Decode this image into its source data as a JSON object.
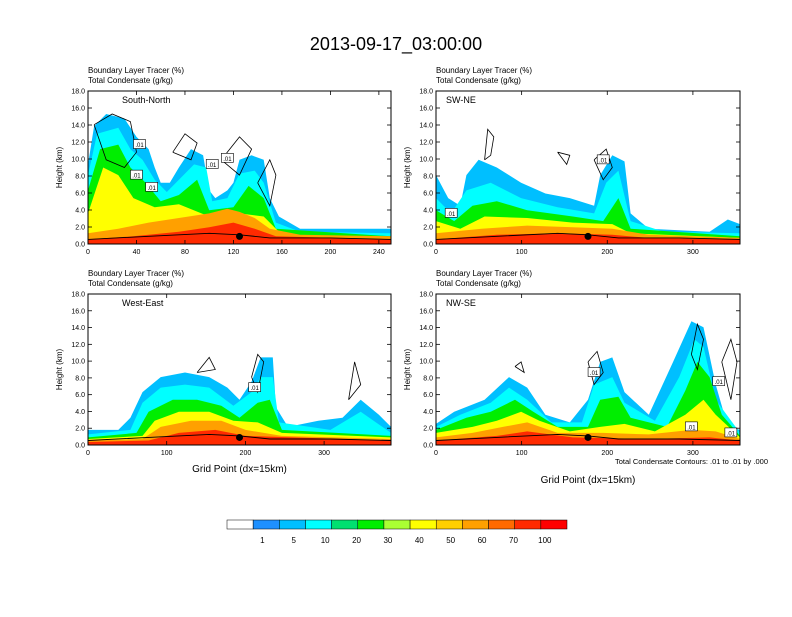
{
  "title": "2013-09-17_03:00:00",
  "colors": [
    "#ffffff",
    "#1e90ff",
    "#00bfff",
    "#00ffff",
    "#00e070",
    "#00ee00",
    "#aaff33",
    "#ffff00",
    "#ffd000",
    "#ffa000",
    "#ff6a00",
    "#ff2a00",
    "#ff0000"
  ],
  "colorbar": {
    "labels": [
      "1",
      "5",
      "10",
      "20",
      "30",
      "40",
      "50",
      "60",
      "70",
      "100"
    ]
  },
  "contour_note": "Total Condensate Contours: .01 to .01 by .000",
  "chart_data": [
    {
      "type": "heatmap",
      "title": "South-North",
      "subtitle_lines": [
        "Boundary Layer Tracer   (%)",
        "Total Condensate   (g/kg)"
      ],
      "ylabel": "Height (km)",
      "xlabel": "",
      "xlim": [
        0,
        250
      ],
      "xticks": [
        "0",
        "40",
        "80",
        "120",
        "160",
        "200",
        "240"
      ],
      "ylim": [
        0,
        18
      ],
      "yticks": [
        "0.0",
        "2.0",
        "4.0",
        "6.0",
        "8.0",
        "10.0",
        "12.0",
        "14.0",
        "16.0",
        "18.0"
      ],
      "contour_labels": [
        ".01",
        ".01",
        ".01",
        ".01",
        ".01"
      ]
    },
    {
      "type": "heatmap",
      "title": "SW-NE",
      "subtitle_lines": [
        "Boundary Layer Tracer   (%)",
        "Total Condensate   (g/kg)"
      ],
      "ylabel": "Height (km)",
      "xlabel": "",
      "xlim": [
        0,
        355
      ],
      "xticks": [
        "0",
        "100",
        "200",
        "300"
      ],
      "ylim": [
        0,
        18
      ],
      "yticks": [
        "0.0",
        "2.0",
        "4.0",
        "6.0",
        "8.0",
        "10.0",
        "12.0",
        "14.0",
        "16.0",
        "18.0"
      ],
      "contour_labels": [
        ".01",
        ".01"
      ]
    },
    {
      "type": "heatmap",
      "title": "West-East",
      "subtitle_lines": [
        "Boundary Layer Tracer   (%)",
        "Total Condensate   (g/kg)"
      ],
      "ylabel": "Height (km)",
      "xlabel": "Grid Point (dx=15km)",
      "xlim": [
        0,
        385
      ],
      "xticks": [
        "0",
        "100",
        "200",
        "300"
      ],
      "ylim": [
        0,
        18
      ],
      "yticks": [
        "0.0",
        "2.0",
        "4.0",
        "6.0",
        "8.0",
        "10.0",
        "12.0",
        "14.0",
        "16.0",
        "18.0"
      ],
      "contour_labels": [
        ".01"
      ]
    },
    {
      "type": "heatmap",
      "title": "NW-SE",
      "subtitle_lines": [
        "Boundary Layer Tracer   (%)",
        "Total Condensate   (g/kg)"
      ],
      "ylabel": "Height (km)",
      "xlabel": "Grid Point (dx=15km)",
      "xlim": [
        0,
        355
      ],
      "xticks": [
        "0",
        "100",
        "200",
        "300"
      ],
      "ylim": [
        0,
        18
      ],
      "yticks": [
        "0.0",
        "2.0",
        "4.0",
        "6.0",
        "8.0",
        "10.0",
        "12.0",
        "14.0",
        "16.0",
        "18.0"
      ],
      "contour_labels": [
        ".01",
        ".01",
        ".01",
        ".01"
      ]
    }
  ]
}
